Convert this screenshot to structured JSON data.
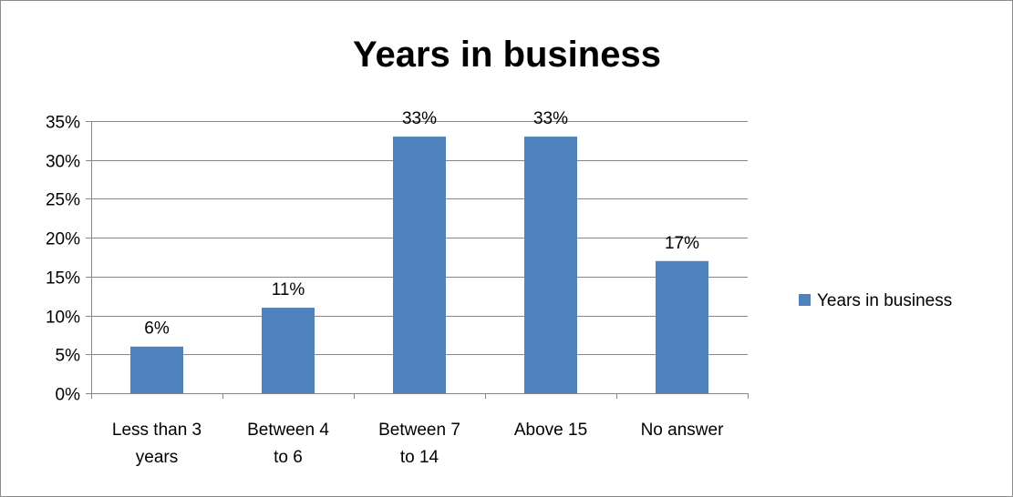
{
  "chart_data": {
    "type": "bar",
    "title": "Years in business",
    "xlabel": "",
    "ylabel": "",
    "categories": [
      [
        "Less than 3",
        "years"
      ],
      [
        "Between 4",
        "to 6"
      ],
      [
        "Between 7",
        "to 14"
      ],
      [
        "Above 15"
      ],
      [
        "No answer"
      ]
    ],
    "series": [
      {
        "name": "Years in business",
        "values": [
          6,
          11,
          33,
          33,
          17
        ],
        "data_labels": [
          "6%",
          "11%",
          "33%",
          "33%",
          "17%"
        ]
      }
    ],
    "ylim": [
      0,
      35
    ],
    "y_ticks": [
      0,
      5,
      10,
      15,
      20,
      25,
      30,
      35
    ],
    "y_tick_labels": [
      "0%",
      "5%",
      "10%",
      "15%",
      "20%",
      "25%",
      "30%",
      "35%"
    ],
    "grid": true,
    "legend": "right",
    "colors": {
      "bar": "#4f81bd",
      "grid": "#868686",
      "axis": "#868686"
    }
  }
}
